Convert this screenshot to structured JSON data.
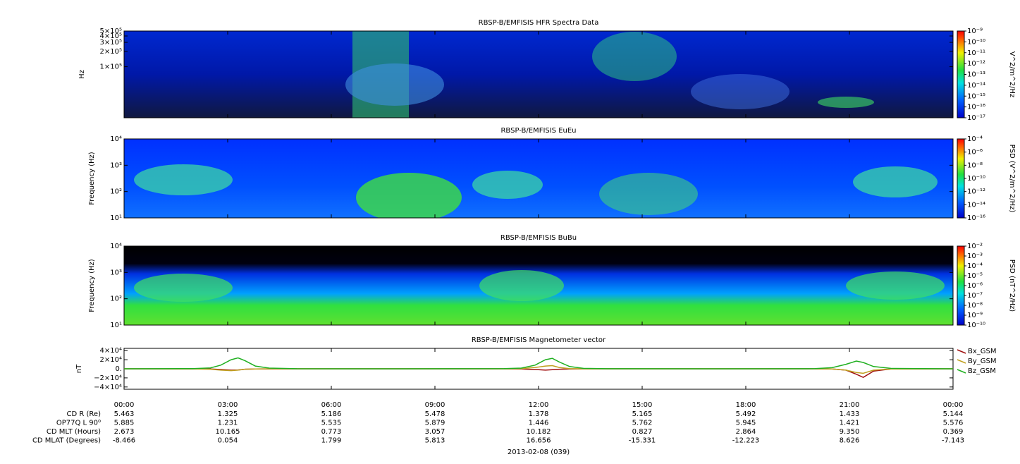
{
  "chart_data": [
    {
      "type": "spectrogram",
      "title": "RBSP-B/EMFISIS  HFR Spectra Data",
      "ylabel": "Hz",
      "ylog": true,
      "ylim": [
        10000,
        500000
      ],
      "yticks": [
        {
          "value": 100000,
          "label": "1×10⁵"
        },
        {
          "value": 200000,
          "label": "2×10⁵"
        },
        {
          "value": 300000,
          "label": "3×10⁵"
        },
        {
          "value": 400000,
          "label": "4×10⁵"
        },
        {
          "value": 500000,
          "label": "5×10⁵"
        }
      ],
      "zlabel": "V^2/m^2/Hz",
      "zlim": [
        1e-17,
        1e-09
      ],
      "zticks": [
        {
          "value": 1e-09,
          "label": "10⁻⁹"
        },
        {
          "value": 1e-10,
          "label": "10⁻¹⁰"
        },
        {
          "value": 1e-11,
          "label": "10⁻¹¹"
        },
        {
          "value": 1e-12,
          "label": "10⁻¹²"
        },
        {
          "value": 1e-13,
          "label": "10⁻¹³"
        },
        {
          "value": 1e-14,
          "label": "10⁻¹⁴"
        },
        {
          "value": 1e-15,
          "label": "10⁻¹⁵"
        },
        {
          "value": 1e-16,
          "label": "10⁻¹⁶"
        },
        {
          "value": 1e-17,
          "label": "10⁻¹⁷"
        }
      ]
    },
    {
      "type": "spectrogram",
      "title": "RBSP-B/EMFISIS  EuEu",
      "ylabel": "Frequency (Hz)",
      "ylog": true,
      "ylim": [
        10,
        10000
      ],
      "yticks": [
        {
          "value": 10,
          "label": "10¹"
        },
        {
          "value": 100,
          "label": "10²"
        },
        {
          "value": 1000,
          "label": "10³"
        },
        {
          "value": 10000,
          "label": "10⁴"
        }
      ],
      "zlabel": "PSD (V^2/m^2/Hz)",
      "zlim": [
        1e-16,
        0.0001
      ],
      "zticks": [
        {
          "value": 0.0001,
          "label": "10⁻⁴"
        },
        {
          "value": 1e-06,
          "label": "10⁻⁶"
        },
        {
          "value": 1e-08,
          "label": "10⁻⁸"
        },
        {
          "value": 1e-10,
          "label": "10⁻¹⁰"
        },
        {
          "value": 1e-12,
          "label": "10⁻¹²"
        },
        {
          "value": 1e-14,
          "label": "10⁻¹⁴"
        },
        {
          "value": 1e-16,
          "label": "10⁻¹⁶"
        }
      ]
    },
    {
      "type": "spectrogram",
      "title": "RBSP-B/EMFISIS  BuBu",
      "ylabel": "Frequency (Hz)",
      "ylog": true,
      "ylim": [
        10,
        10000
      ],
      "yticks": [
        {
          "value": 10,
          "label": "10¹"
        },
        {
          "value": 100,
          "label": "10²"
        },
        {
          "value": 1000,
          "label": "10³"
        },
        {
          "value": 10000,
          "label": "10⁴"
        }
      ],
      "zlabel": "PSD (nT^2/Hz)",
      "zlim": [
        1e-10,
        0.01
      ],
      "zticks": [
        {
          "value": 0.01,
          "label": "10⁻²"
        },
        {
          "value": 0.001,
          "label": "10⁻³"
        },
        {
          "value": 0.0001,
          "label": "10⁻⁴"
        },
        {
          "value": 1e-05,
          "label": "10⁻⁵"
        },
        {
          "value": 1e-06,
          "label": "10⁻⁶"
        },
        {
          "value": 1e-07,
          "label": "10⁻⁷"
        },
        {
          "value": 1e-08,
          "label": "10⁻⁸"
        },
        {
          "value": 1e-09,
          "label": "10⁻⁹"
        },
        {
          "value": 1e-10,
          "label": "10⁻¹⁰"
        }
      ]
    },
    {
      "type": "line",
      "title": "RBSP-B/EMFISIS  Magnetometer vector",
      "ylabel": "nT",
      "ylim": [
        -45000,
        45000
      ],
      "yticks": [
        {
          "value": 40000,
          "label": "4×10⁴"
        },
        {
          "value": 20000,
          "label": "2×10⁴"
        },
        {
          "value": 0,
          "label": "0."
        },
        {
          "value": -20000,
          "label": "−2×10⁴"
        },
        {
          "value": -40000,
          "label": "−4×10⁴"
        }
      ],
      "xlim": [
        0,
        24
      ],
      "xticks": [
        {
          "value": 0,
          "label": "00:00"
        },
        {
          "value": 3,
          "label": "03:00"
        },
        {
          "value": 6,
          "label": "06:00"
        },
        {
          "value": 9,
          "label": "09:00"
        },
        {
          "value": 12,
          "label": "12:00"
        },
        {
          "value": 15,
          "label": "15:00"
        },
        {
          "value": 18,
          "label": "18:00"
        },
        {
          "value": 21,
          "label": "21:00"
        },
        {
          "value": 24,
          "label": "00:00"
        }
      ],
      "x": [
        0,
        2,
        2.5,
        2.8,
        3.1,
        3.3,
        3.5,
        3.8,
        4.2,
        5,
        8,
        11,
        11.5,
        11.9,
        12.2,
        12.4,
        12.6,
        12.9,
        13.3,
        14,
        17,
        20,
        20.5,
        20.9,
        21.2,
        21.4,
        21.7,
        22.2,
        24
      ],
      "legend": "right",
      "series": [
        {
          "name": "Bx_GSM",
          "color": "#a01010",
          "values": [
            0,
            -100,
            -500,
            -1500,
            -3000,
            -2500,
            -1000,
            -500,
            -200,
            0,
            0,
            0,
            -300,
            -1500,
            -3000,
            -2000,
            -1000,
            -300,
            0,
            0,
            0,
            0,
            -500,
            -3000,
            -12000,
            -19000,
            -5000,
            -500,
            0
          ]
        },
        {
          "name": "By_GSM",
          "color": "#c0a020",
          "values": [
            0,
            -200,
            -1000,
            -3000,
            -4000,
            -3000,
            -1000,
            -300,
            0,
            0,
            0,
            0,
            500,
            3000,
            6000,
            7000,
            3000,
            500,
            0,
            0,
            0,
            0,
            -500,
            -3000,
            -8000,
            -10000,
            -3000,
            -500,
            0
          ]
        },
        {
          "name": "Bz_GSM",
          "color": "#20b020",
          "values": [
            0,
            500,
            2000,
            8000,
            20000,
            24000,
            18000,
            6000,
            1500,
            200,
            0,
            300,
            1500,
            8000,
            20000,
            23000,
            15000,
            5000,
            1000,
            200,
            0,
            300,
            2500,
            10000,
            17000,
            14000,
            5000,
            1000,
            0
          ]
        }
      ],
      "ephemeris": [
        {
          "label": "CD R (Re)",
          "values": [
            "5.463",
            "1.325",
            "5.186",
            "5.478",
            "1.378",
            "5.165",
            "5.492",
            "1.433",
            "5.144"
          ]
        },
        {
          "label": "OP77Q L 90⁰",
          "values": [
            "5.885",
            "1.231",
            "5.535",
            "5.879",
            "1.446",
            "5.762",
            "5.945",
            "1.421",
            "5.576"
          ]
        },
        {
          "label": "CD MLT (Hours)",
          "values": [
            "2.673",
            "10.165",
            "0.773",
            "3.057",
            "10.182",
            "0.827",
            "2.864",
            "9.350",
            "0.369"
          ]
        },
        {
          "label": "CD MLAT (Degrees)",
          "values": [
            "-8.466",
            "0.054",
            "1.799",
            "5.813",
            "16.656",
            "-15.331",
            "-12.223",
            "8.626",
            "-7.143"
          ]
        }
      ],
      "date": "2013-02-08 (039)"
    }
  ]
}
